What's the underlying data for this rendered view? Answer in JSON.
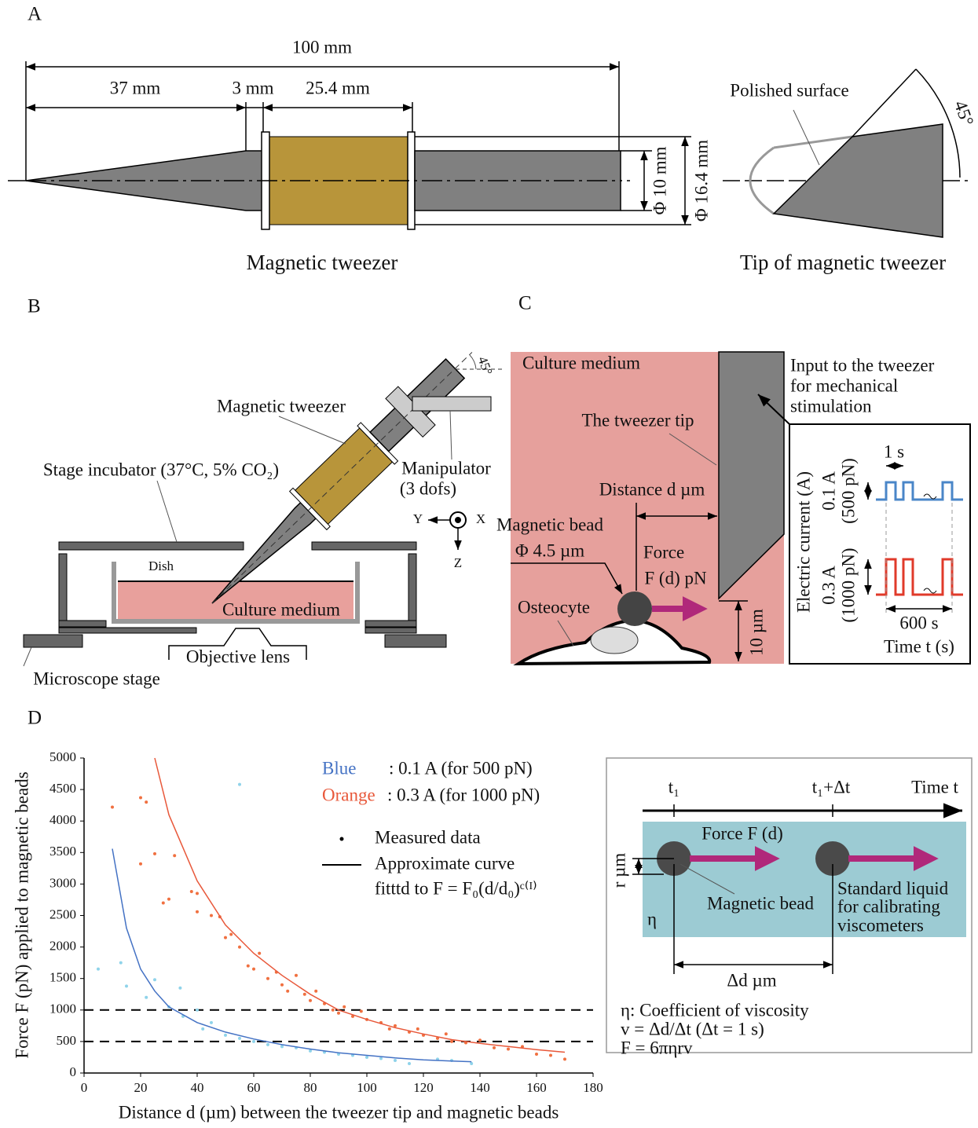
{
  "panel_a": {
    "label": "A",
    "dim_total": "100 mm",
    "dim_1": "37 mm",
    "dim_2": "3 mm",
    "dim_3": "25.4 mm",
    "dia_inner": "Φ 10 mm",
    "dia_outer": "Φ 16.4 mm",
    "caption": "Magnetic tweezer",
    "polished": "Polished surface",
    "angle": "45°",
    "tip_caption": "Tip of magnetic tweezer"
  },
  "panel_b": {
    "label": "B",
    "tweezer": "Magnetic tweezer",
    "angle": "45°",
    "incubator": "Stage incubator (37°C, 5% CO₂)",
    "manipulator_1": "Manipulator",
    "manipulator_2": "(3 dofs)",
    "axis_y": "Y",
    "axis_x": "X",
    "axis_z": "Z",
    "dish": "Dish",
    "medium": "Culture medium",
    "lens": "Objective lens",
    "stage": "Microscope stage"
  },
  "panel_c": {
    "label": "C",
    "medium": "Culture medium",
    "tip": "The tweezer tip",
    "distance": "Distance d µm",
    "bead_1": "Magnetic bead",
    "bead_2": "Φ 4.5 µm",
    "force_1": "Force",
    "force_2": "F (d) pN",
    "osteocyte": "Osteocyte",
    "gap": "10 µm",
    "input_lines": [
      "Input to the tweezer",
      "for mechanical",
      "stimulation"
    ],
    "y_axis": "Electric current (A)",
    "low_1": "0.1 A",
    "low_2": "(500 pN)",
    "high_1": "0.3 A",
    "high_2": "(1000 pN)",
    "period": "1 s",
    "duration": "600 s",
    "time": "Time t (s)"
  },
  "panel_d": {
    "label": "D"
  },
  "panel_e": {
    "time": "Time t",
    "t1": "t₁",
    "t2": "t₁+Δt",
    "force": "Force F (d)",
    "radius": "r µm",
    "bead": "Magnetic bead",
    "liquid_lines": [
      "Standard liquid",
      "for calibrating",
      "viscometers"
    ],
    "eta": "η",
    "delta": "Δd µm",
    "notes": [
      "η: Coefficient of viscosity",
      "v = Δd/Δt (Δt = 1 s)",
      "F = 6πηrv"
    ]
  },
  "chart_data": {
    "type": "scatter",
    "x_label": "Distance d (µm) between the tweezer tip and magnetic beads",
    "y_label": "Force F (pN) applied to magnetic beads",
    "xlim": [
      0,
      180
    ],
    "xticks": [
      0,
      20,
      40,
      60,
      80,
      100,
      120,
      140,
      160,
      180
    ],
    "ylim": [
      0,
      5000
    ],
    "yticks": [
      0,
      500,
      1000,
      1500,
      2000,
      2500,
      3000,
      3500,
      4000,
      4500,
      5000
    ],
    "hlines": [
      500,
      1000
    ],
    "legend_markers": {
      "points": "Measured data",
      "curve": "Approximate curve",
      "curve_note": "fitttd to F = F₀(d/d₀)ᶜ⁽ᴵ⁾"
    },
    "series": [
      {
        "name": "Blue",
        "label": ": 0.1 A (for 500 pN)",
        "color": "#4472c4",
        "point_color": "#8fd3ea",
        "x": [
          5,
          13,
          15,
          22,
          25,
          30,
          34,
          35,
          40,
          42,
          45,
          50,
          55,
          55,
          60,
          65,
          70,
          75,
          80,
          85,
          90,
          95,
          100,
          105,
          110,
          115,
          125,
          130,
          137
        ],
        "values": [
          1650,
          1750,
          1380,
          1200,
          1480,
          1050,
          1350,
          900,
          1000,
          700,
          800,
          600,
          4580,
          550,
          500,
          450,
          420,
          400,
          350,
          330,
          300,
          280,
          250,
          230,
          200,
          150,
          220,
          200,
          150
        ],
        "curve": {
          "x": [
            10,
            15,
            20,
            25,
            30,
            40,
            50,
            60,
            70,
            80,
            90,
            100,
            110,
            120,
            130,
            137
          ],
          "values": [
            3560,
            2300,
            1650,
            1300,
            1050,
            800,
            650,
            540,
            450,
            380,
            320,
            280,
            240,
            210,
            190,
            180
          ]
        }
      },
      {
        "name": "Orange",
        "label": ": 0.3 A (for 1000 pN)",
        "color": "#e8583a",
        "point_color": "#f07040",
        "x": [
          10,
          20,
          22,
          20,
          25,
          28,
          30,
          32,
          38,
          40,
          40,
          45,
          48,
          50,
          52,
          55,
          58,
          60,
          62,
          65,
          68,
          70,
          72,
          75,
          78,
          80,
          82,
          85,
          88,
          90,
          92,
          95,
          98,
          100,
          105,
          108,
          110,
          115,
          118,
          120,
          125,
          128,
          130,
          135,
          140,
          145,
          150,
          155,
          160,
          165,
          170
        ],
        "values": [
          4220,
          4370,
          4300,
          3320,
          3480,
          2700,
          2760,
          3450,
          2880,
          2850,
          2560,
          2500,
          2480,
          2150,
          2200,
          2000,
          1700,
          1650,
          1900,
          1500,
          1600,
          1400,
          1300,
          1550,
          1250,
          1150,
          1300,
          1100,
          1000,
          950,
          1050,
          900,
          980,
          850,
          800,
          700,
          750,
          650,
          700,
          600,
          550,
          620,
          500,
          480,
          520,
          400,
          380,
          420,
          300,
          280,
          220
        ],
        "curve": {
          "x": [
            25,
            30,
            40,
            50,
            60,
            70,
            80,
            90,
            100,
            110,
            120,
            130,
            140,
            150,
            160,
            170
          ],
          "values": [
            5000,
            4100,
            3050,
            2350,
            1900,
            1550,
            1250,
            1000,
            850,
            720,
            620,
            530,
            470,
            420,
            370,
            330
          ]
        }
      }
    ]
  }
}
